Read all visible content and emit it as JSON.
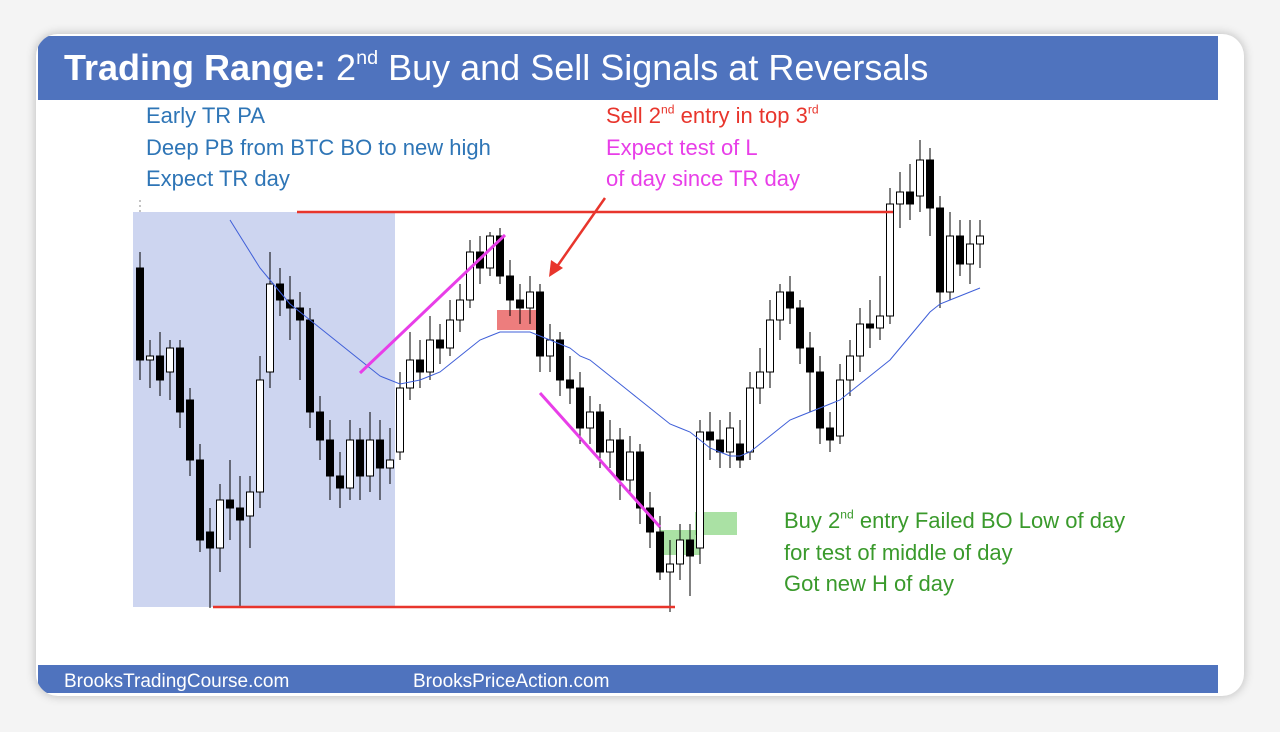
{
  "header": {
    "title_bold": "Trading Range:",
    "title_num": "2",
    "title_sup": "nd",
    "title_rest": " Buy and Sell Signals at Reversals"
  },
  "notes": {
    "early": [
      "Early TR PA",
      "Deep PB from BTC BO to new high",
      "Expect TR day"
    ],
    "sell": {
      "a": "Sell 2",
      "sup1": "nd",
      "b": " entry in top 3",
      "sup2": "rd",
      "line2": "Expect test of L",
      "line3": "of day since TR day"
    },
    "buy": {
      "a": "Buy 2",
      "sup1": "nd",
      "b": " entry Failed BO Low of day",
      "line2": "for test of middle of day",
      "line3": "Got new H of day"
    }
  },
  "footer": {
    "left": "BrooksTradingCourse.com",
    "right": "BrooksPriceAction.com"
  },
  "chart_data": {
    "type": "candlestick",
    "ylim": [
      0,
      120
    ],
    "up_color": "#ffffff",
    "down_color": "#000000",
    "ma_color": "#3f5fd8",
    "ohlc": [
      [
        88,
        92,
        60,
        65
      ],
      [
        65,
        70,
        58,
        66
      ],
      [
        66,
        72,
        56,
        60
      ],
      [
        62,
        70,
        55,
        68
      ],
      [
        68,
        70,
        48,
        52
      ],
      [
        55,
        58,
        36,
        40
      ],
      [
        40,
        44,
        17,
        20
      ],
      [
        22,
        28,
        3,
        18
      ],
      [
        18,
        34,
        12,
        30
      ],
      [
        30,
        40,
        20,
        28
      ],
      [
        28,
        36,
        3,
        25
      ],
      [
        26,
        36,
        18,
        32
      ],
      [
        32,
        66,
        28,
        60
      ],
      [
        62,
        92,
        58,
        84
      ],
      [
        84,
        88,
        76,
        80
      ],
      [
        80,
        86,
        70,
        78
      ],
      [
        78,
        82,
        60,
        75
      ],
      [
        75,
        78,
        48,
        52
      ],
      [
        52,
        56,
        40,
        45
      ],
      [
        45,
        50,
        30,
        36
      ],
      [
        36,
        42,
        28,
        33
      ],
      [
        33,
        50,
        30,
        45
      ],
      [
        45,
        48,
        30,
        36
      ],
      [
        36,
        52,
        32,
        45
      ],
      [
        45,
        50,
        30,
        38
      ],
      [
        38,
        48,
        34,
        40
      ],
      [
        42,
        62,
        40,
        58
      ],
      [
        58,
        72,
        55,
        65
      ],
      [
        65,
        70,
        58,
        62
      ],
      [
        62,
        76,
        60,
        70
      ],
      [
        70,
        74,
        64,
        68
      ],
      [
        68,
        80,
        66,
        75
      ],
      [
        75,
        84,
        72,
        80
      ],
      [
        80,
        95,
        78,
        92
      ],
      [
        92,
        96,
        84,
        88
      ],
      [
        88,
        97,
        86,
        96
      ],
      [
        96,
        98,
        84,
        86
      ],
      [
        86,
        90,
        76,
        80
      ],
      [
        80,
        84,
        74,
        78
      ],
      [
        78,
        86,
        74,
        82
      ],
      [
        82,
        84,
        62,
        66
      ],
      [
        66,
        74,
        62,
        70
      ],
      [
        70,
        72,
        56,
        60
      ],
      [
        60,
        66,
        54,
        58
      ],
      [
        58,
        62,
        44,
        48
      ],
      [
        48,
        56,
        44,
        52
      ],
      [
        52,
        54,
        38,
        42
      ],
      [
        42,
        50,
        38,
        45
      ],
      [
        45,
        48,
        30,
        35
      ],
      [
        35,
        46,
        32,
        42
      ],
      [
        42,
        44,
        24,
        28
      ],
      [
        28,
        32,
        18,
        22
      ],
      [
        22,
        26,
        10,
        12
      ],
      [
        12,
        20,
        2,
        14
      ],
      [
        14,
        24,
        10,
        20
      ],
      [
        20,
        24,
        6,
        16
      ],
      [
        18,
        50,
        14,
        47
      ],
      [
        47,
        52,
        40,
        45
      ],
      [
        45,
        50,
        38,
        42
      ],
      [
        42,
        52,
        38,
        48
      ],
      [
        44,
        50,
        38,
        40
      ],
      [
        42,
        62,
        40,
        58
      ],
      [
        58,
        68,
        54,
        62
      ],
      [
        62,
        80,
        58,
        75
      ],
      [
        75,
        84,
        70,
        82
      ],
      [
        82,
        86,
        74,
        78
      ],
      [
        78,
        80,
        64,
        68
      ],
      [
        68,
        72,
        52,
        62
      ],
      [
        62,
        66,
        44,
        48
      ],
      [
        48,
        52,
        42,
        45
      ],
      [
        46,
        64,
        44,
        60
      ],
      [
        60,
        70,
        56,
        66
      ],
      [
        66,
        78,
        62,
        74
      ],
      [
        74,
        80,
        68,
        73
      ],
      [
        73,
        86,
        70,
        76
      ],
      [
        76,
        108,
        74,
        104
      ],
      [
        104,
        112,
        98,
        107
      ],
      [
        107,
        114,
        100,
        104
      ],
      [
        106,
        120,
        102,
        115
      ],
      [
        115,
        118,
        96,
        103
      ],
      [
        103,
        106,
        78,
        82
      ],
      [
        82,
        102,
        80,
        96
      ],
      [
        96,
        100,
        86,
        89
      ],
      [
        89,
        100,
        84,
        94
      ],
      [
        94,
        100,
        88,
        96
      ]
    ],
    "ma": [
      null,
      null,
      null,
      null,
      null,
      null,
      null,
      null,
      null,
      100,
      96,
      92,
      88,
      85,
      82,
      79,
      77,
      75,
      73,
      71,
      69,
      67,
      65,
      63,
      61,
      60,
      59,
      59.5,
      60,
      61,
      62,
      64,
      66,
      68,
      70,
      71,
      72,
      72,
      72,
      72,
      71,
      70,
      69,
      68,
      66,
      65,
      63,
      61,
      59,
      57,
      55,
      53,
      51,
      49,
      48,
      47,
      45,
      43,
      42,
      41,
      41,
      42,
      44,
      46,
      48,
      50,
      51,
      52,
      53,
      54,
      55,
      57,
      59,
      61,
      63,
      65,
      68,
      71,
      74,
      77,
      79,
      80,
      81,
      82,
      83
    ],
    "shaded_range": {
      "from": -0.7,
      "to": 25.5,
      "low": 3.25,
      "high": 102,
      "color": "#cdd5f0"
    },
    "levels": [
      {
        "value": 102,
        "from": 15.7,
        "to": 75.3,
        "color": "#e8352c"
      },
      {
        "value": 3.25,
        "from": 7.3,
        "to": 53.5,
        "color": "#e8352c"
      }
    ],
    "trendlines": [
      {
        "points": [
          [
            22,
            61.75
          ],
          [
            36.5,
            96.25
          ]
        ],
        "color": "#e83ee8"
      },
      {
        "points": [
          [
            40,
            56.75
          ],
          [
            52,
            23.25
          ]
        ],
        "color": "#e83ee8"
      }
    ],
    "zones": [
      {
        "from": 35.7,
        "to": 40,
        "low": 72.5,
        "high": 77.5,
        "color": "rgba(230,70,70,0.7)"
      },
      {
        "from": 52,
        "to": 56,
        "low": 16.25,
        "high": 22.5,
        "color": "rgba(100,200,90,0.55)"
      },
      {
        "from": 55.5,
        "to": 59.7,
        "low": 21.25,
        "high": 27,
        "color": "rgba(100,200,90,0.55)"
      }
    ]
  }
}
